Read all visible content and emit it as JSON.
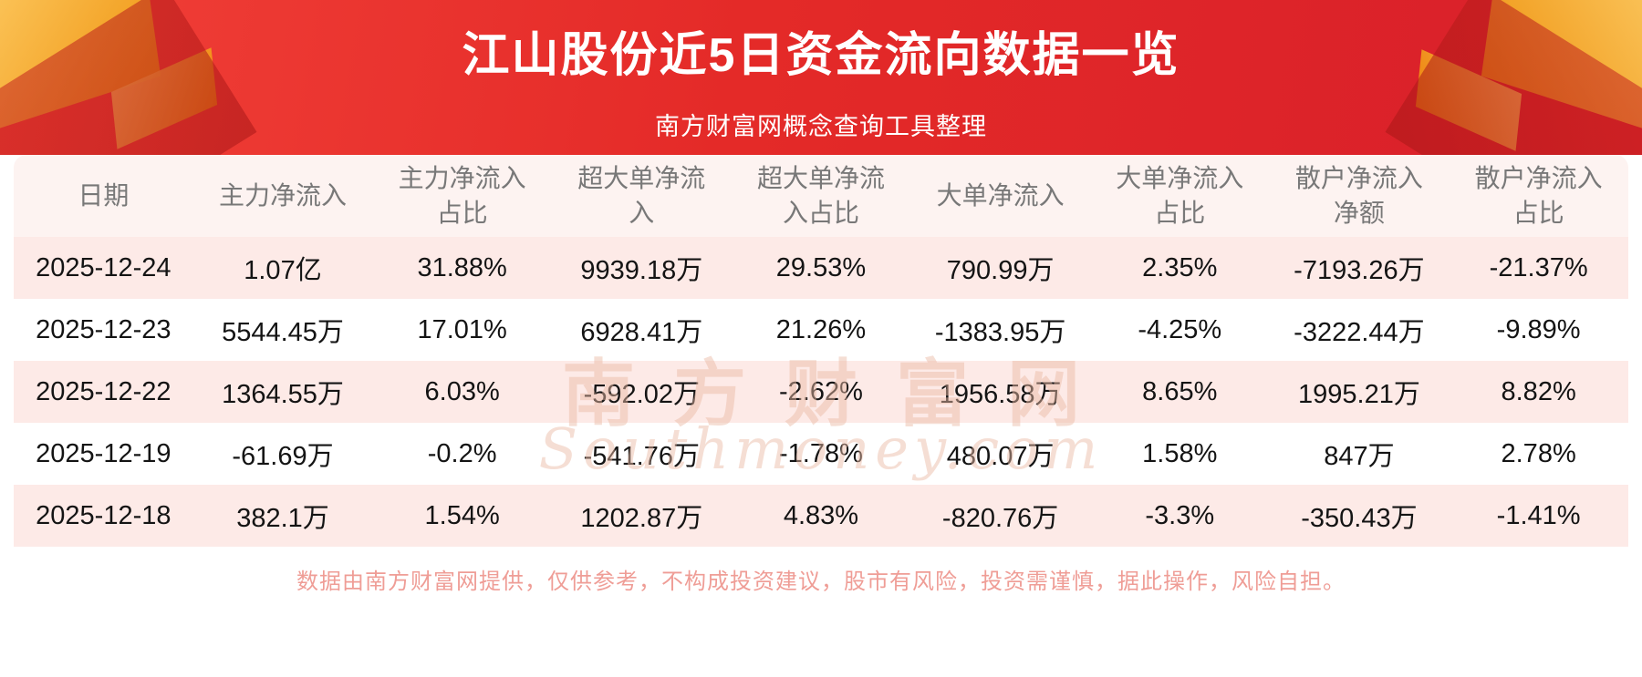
{
  "header": {
    "title": "江山股份近5日资金流向数据一览",
    "subtitle": "南方财富网概念查询工具整理"
  },
  "chart_data": {
    "type": "table",
    "title": "江山股份近5日资金流向数据一览",
    "columns": [
      "日期",
      "主力净流入",
      "主力净流入占比",
      "超大单净流入",
      "超大单净流入占比",
      "大单净流入",
      "大单净流入占比",
      "散户净流入净额",
      "散户净流入占比"
    ],
    "rows": [
      [
        "2025-12-24",
        "1.07亿",
        "31.88%",
        "9939.18万",
        "29.53%",
        "790.99万",
        "2.35%",
        "-7193.26万",
        "-21.37%"
      ],
      [
        "2025-12-23",
        "5544.45万",
        "17.01%",
        "6928.41万",
        "21.26%",
        "-1383.95万",
        "-4.25%",
        "-3222.44万",
        "-9.89%"
      ],
      [
        "2025-12-22",
        "1364.55万",
        "6.03%",
        "-592.02万",
        "-2.62%",
        "1956.58万",
        "8.65%",
        "1995.21万",
        "8.82%"
      ],
      [
        "2025-12-19",
        "-61.69万",
        "-0.2%",
        "-541.76万",
        "-1.78%",
        "480.07万",
        "1.58%",
        "847万",
        "2.78%"
      ],
      [
        "2025-12-18",
        "382.1万",
        "1.54%",
        "1202.87万",
        "4.83%",
        "-820.76万",
        "-3.3%",
        "-350.43万",
        "-1.41%"
      ]
    ]
  },
  "watermark": {
    "cn": "南方财富网",
    "en": "Southmoney.com"
  },
  "footer": {
    "disclaimer": "数据由南方财富网提供，仅供参考，不构成投资建议，股市有风险，投资需谨慎，据此操作，风险自担。"
  },
  "colors": {
    "banner_red": "#e42a28",
    "header_row_pink": "#fdf3f1",
    "alt_row_pink": "#fdeae7",
    "header_text": "#787878",
    "cell_text": "#141414",
    "footer_text": "#ef9d96",
    "decor_gold": "#f09a10",
    "title_text": "#ffffff"
  }
}
